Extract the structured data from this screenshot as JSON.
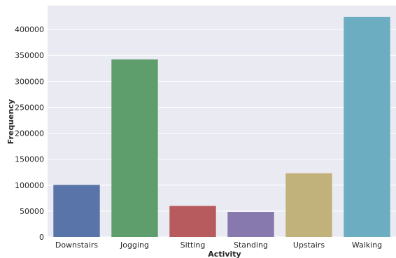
{
  "chart_data": {
    "type": "bar",
    "title": "",
    "xlabel": "Activity",
    "ylabel": "Frequency",
    "categories": [
      "Downstairs",
      "Jogging",
      "Sitting",
      "Standing",
      "Upstairs",
      "Walking"
    ],
    "values": [
      100400,
      342200,
      59900,
      48400,
      122900,
      424400
    ],
    "ylim": [
      0,
      446000
    ],
    "yticks": [
      0,
      50000,
      100000,
      150000,
      200000,
      250000,
      300000,
      350000,
      400000
    ],
    "ytick_labels": [
      "0",
      "50000",
      "100000",
      "150000",
      "200000",
      "250000",
      "300000",
      "350000",
      "400000"
    ],
    "grid": true,
    "colors": {
      "plot_background": "#eaeaf2",
      "grid": "#ffffff",
      "bars": [
        "#5874a8",
        "#5d9e6c",
        "#b75b5e",
        "#8778ae",
        "#c1b27c",
        "#6cadc2"
      ]
    }
  }
}
